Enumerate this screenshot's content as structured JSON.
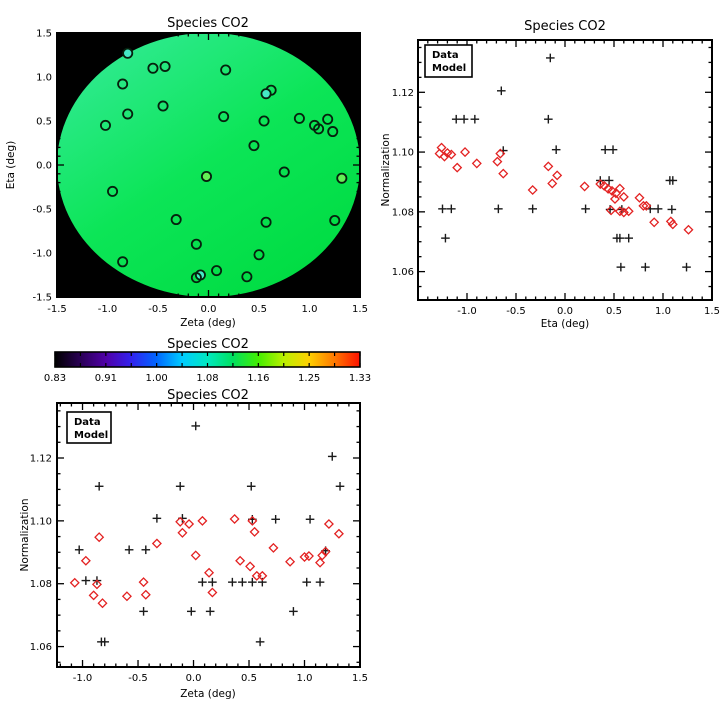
{
  "figure": {
    "background": "#ffffff"
  },
  "palette": {
    "axis": "#000000",
    "data_color": "#1a1a1a",
    "model_color": "#e32222",
    "map_background": "#000000",
    "disk_gradient": [
      "#38eb9e",
      "#0ce557",
      "#00dc42"
    ],
    "source_outline": "#06200d",
    "cyan_fill": "#45e8c5",
    "lightgreen_fill": "#63ef55"
  },
  "chart_data": [
    {
      "id": "map",
      "type": "scatter",
      "title": "Species CO2",
      "xlabel": "Zeta (deg)",
      "ylabel": "Eta (deg)",
      "xlim": [
        -1.5,
        1.5
      ],
      "ylim": [
        -1.5,
        1.5
      ],
      "xtick_vals": [
        -1.5,
        -1.0,
        -0.5,
        0.0,
        0.5,
        1.0,
        1.5
      ],
      "xtick_labels": [
        "-1.5",
        "-1.0",
        "-0.5",
        "0.0",
        "0.5",
        "1.0",
        "1.5"
      ],
      "ytick_vals": [
        -1.5,
        -1.0,
        -0.5,
        0.0,
        0.5,
        1.0,
        1.5
      ],
      "ytick_labels": [
        "-1.5",
        "-1.0",
        "-0.5",
        "0.0",
        "0.5",
        "1.0",
        "1.5"
      ],
      "x_minor_step": 0.1,
      "y_minor_step": 0.1,
      "grid": false,
      "sources": [
        [
          -0.8,
          1.27,
          "cyan"
        ],
        [
          -0.55,
          1.1,
          "none"
        ],
        [
          -0.43,
          1.12,
          "none"
        ],
        [
          0.17,
          1.08,
          "none"
        ],
        [
          -0.85,
          0.92,
          "none"
        ],
        [
          0.62,
          0.85,
          "none"
        ],
        [
          0.57,
          0.81,
          "cyan"
        ],
        [
          -0.45,
          0.67,
          "none"
        ],
        [
          -0.8,
          0.58,
          "none"
        ],
        [
          -1.02,
          0.45,
          "none"
        ],
        [
          0.15,
          0.55,
          "none"
        ],
        [
          0.55,
          0.5,
          "none"
        ],
        [
          0.9,
          0.53,
          "none"
        ],
        [
          1.05,
          0.45,
          "none"
        ],
        [
          1.09,
          0.41,
          "none"
        ],
        [
          1.18,
          0.52,
          "none"
        ],
        [
          1.23,
          0.38,
          "none"
        ],
        [
          0.45,
          0.22,
          "none"
        ],
        [
          0.75,
          -0.08,
          "none"
        ],
        [
          -0.02,
          -0.13,
          "green"
        ],
        [
          1.32,
          -0.15,
          "green"
        ],
        [
          -0.95,
          -0.3,
          "none"
        ],
        [
          -0.32,
          -0.62,
          "none"
        ],
        [
          0.57,
          -0.65,
          "none"
        ],
        [
          1.25,
          -0.63,
          "none"
        ],
        [
          -0.12,
          -0.9,
          "none"
        ],
        [
          0.5,
          -1.02,
          "none"
        ],
        [
          -0.85,
          -1.1,
          "none"
        ],
        [
          0.08,
          -1.2,
          "none"
        ],
        [
          -0.08,
          -1.25,
          "cyan"
        ],
        [
          -0.12,
          -1.28,
          "none"
        ],
        [
          0.38,
          -1.27,
          "none"
        ]
      ]
    },
    {
      "id": "eta_scatter",
      "type": "scatter",
      "title": "Species CO2",
      "xlabel": "Eta (deg)",
      "ylabel": "Normalization",
      "xlim": [
        -1.5,
        1.5
      ],
      "ylim": [
        1.0505,
        1.1375
      ],
      "xtick_vals": [
        -1.0,
        -0.5,
        0.0,
        0.5,
        1.0,
        1.5
      ],
      "xtick_labels": [
        "-1.0",
        "-0.5",
        "0.0",
        "0.5",
        "1.0",
        "1.5"
      ],
      "ytick_vals": [
        1.06,
        1.08,
        1.1,
        1.12
      ],
      "ytick_labels": [
        "1.06",
        "1.08",
        "1.10",
        "1.12"
      ],
      "x_minor_step": 0.1,
      "y_minor_step": 0.005,
      "grid": false,
      "legend": {
        "data_label": "Data",
        "model_label": "Model"
      },
      "data_points": [
        [
          -0.15,
          1.1315
        ],
        [
          -0.65,
          1.1205
        ],
        [
          -1.11,
          1.111
        ],
        [
          -1.03,
          1.111
        ],
        [
          -0.92,
          1.111
        ],
        [
          -0.17,
          1.111
        ],
        [
          -0.63,
          1.1005
        ],
        [
          -0.09,
          1.1008
        ],
        [
          0.41,
          1.1008
        ],
        [
          0.49,
          1.1008
        ],
        [
          0.36,
          1.0905
        ],
        [
          0.45,
          1.0905
        ],
        [
          1.07,
          1.0905
        ],
        [
          1.1,
          1.0905
        ],
        [
          -1.25,
          1.081
        ],
        [
          -1.16,
          1.081
        ],
        [
          -0.68,
          1.081
        ],
        [
          -0.33,
          1.081
        ],
        [
          0.21,
          1.081
        ],
        [
          0.46,
          1.0808
        ],
        [
          0.58,
          1.0808
        ],
        [
          0.87,
          1.081
        ],
        [
          0.95,
          1.081
        ],
        [
          1.09,
          1.0808
        ],
        [
          -1.22,
          1.0712
        ],
        [
          0.53,
          1.0712
        ],
        [
          0.56,
          1.0712
        ],
        [
          0.65,
          1.0712
        ],
        [
          0.57,
          1.0615
        ],
        [
          0.82,
          1.0615
        ],
        [
          1.24,
          1.0615
        ]
      ],
      "model_points": [
        [
          -1.26,
          1.1015
        ],
        [
          -1.28,
          1.0995
        ],
        [
          -1.23,
          1.0985
        ],
        [
          -1.2,
          1.0997
        ],
        [
          -1.16,
          1.0992
        ],
        [
          -1.1,
          1.0948
        ],
        [
          -1.02,
          1.1
        ],
        [
          -0.9,
          1.0962
        ],
        [
          -0.69,
          1.0968
        ],
        [
          -0.66,
          1.0995
        ],
        [
          -0.63,
          1.0928
        ],
        [
          -0.33,
          1.0873
        ],
        [
          -0.17,
          1.0952
        ],
        [
          -0.13,
          1.0895
        ],
        [
          -0.08,
          1.0922
        ],
        [
          0.2,
          1.0885
        ],
        [
          0.36,
          1.0893
        ],
        [
          0.4,
          1.0887
        ],
        [
          0.44,
          1.0877
        ],
        [
          0.48,
          1.087
        ],
        [
          0.52,
          1.0862
        ],
        [
          0.56,
          1.0878
        ],
        [
          0.6,
          1.085
        ],
        [
          0.51,
          1.0843
        ],
        [
          0.47,
          1.0805
        ],
        [
          0.56,
          1.0802
        ],
        [
          0.6,
          1.0798
        ],
        [
          0.65,
          1.0802
        ],
        [
          0.8,
          1.082
        ],
        [
          0.83,
          1.082
        ],
        [
          0.76,
          1.0847
        ],
        [
          0.91,
          1.0765
        ],
        [
          1.08,
          1.0768
        ],
        [
          1.1,
          1.0758
        ],
        [
          1.26,
          1.074
        ]
      ]
    },
    {
      "id": "colorbar",
      "type": "heatmap",
      "title": "Species CO2",
      "tick_labels": [
        "0.83",
        "0.91",
        "1.00",
        "1.08",
        "1.16",
        "1.25",
        "1.33"
      ],
      "n_ticks": 13,
      "gradient": [
        "#000000",
        "#2a0055",
        "#5000a8",
        "#3322ee",
        "#0066ff",
        "#00ccff",
        "#00e8c0",
        "#00e060",
        "#44ee00",
        "#bbf000",
        "#ffd000",
        "#ff7700",
        "#ff1100"
      ]
    },
    {
      "id": "zeta_scatter",
      "type": "scatter",
      "title": "Species CO2",
      "xlabel": "Zeta (deg)",
      "ylabel": "Normalization",
      "xlim": [
        -1.23,
        1.5
      ],
      "ylim": [
        1.0535,
        1.1375
      ],
      "xtick_vals": [
        -1.0,
        -0.5,
        0.0,
        0.5,
        1.0,
        1.5
      ],
      "xtick_labels": [
        "-1.0",
        "-0.5",
        "0.0",
        "0.5",
        "1.0",
        "1.5"
      ],
      "ytick_vals": [
        1.06,
        1.08,
        1.1,
        1.12
      ],
      "ytick_labels": [
        "1.06",
        "1.08",
        "1.10",
        "1.12"
      ],
      "x_minor_step": 0.1,
      "y_minor_step": 0.005,
      "grid": false,
      "legend": {
        "data_label": "Data",
        "model_label": "Model"
      },
      "data_points": [
        [
          0.02,
          1.1302
        ],
        [
          1.25,
          1.1205
        ],
        [
          -0.85,
          1.111
        ],
        [
          -0.12,
          1.111
        ],
        [
          0.52,
          1.111
        ],
        [
          1.32,
          1.111
        ],
        [
          -0.33,
          1.1008
        ],
        [
          -0.1,
          1.1008
        ],
        [
          0.53,
          1.1005
        ],
        [
          0.74,
          1.1005
        ],
        [
          1.05,
          1.1005
        ],
        [
          -1.03,
          1.0908
        ],
        [
          -0.58,
          1.0908
        ],
        [
          -0.43,
          1.0908
        ],
        [
          1.19,
          1.0905
        ],
        [
          -0.97,
          1.081
        ],
        [
          -0.87,
          1.081
        ],
        [
          0.08,
          1.0805
        ],
        [
          0.17,
          1.0805
        ],
        [
          0.35,
          1.0805
        ],
        [
          0.44,
          1.0805
        ],
        [
          0.53,
          1.0805
        ],
        [
          0.62,
          1.0805
        ],
        [
          1.02,
          1.0805
        ],
        [
          1.14,
          1.0805
        ],
        [
          -0.45,
          1.0712
        ],
        [
          -0.02,
          1.0712
        ],
        [
          0.15,
          1.0712
        ],
        [
          0.9,
          1.0712
        ],
        [
          -0.83,
          1.0615
        ],
        [
          -0.8,
          1.0615
        ],
        [
          0.6,
          1.0615
        ]
      ],
      "model_points": [
        [
          -1.07,
          1.0803
        ],
        [
          -0.97,
          1.0873
        ],
        [
          -0.85,
          1.0948
        ],
        [
          -0.87,
          1.0798
        ],
        [
          -0.9,
          1.0763
        ],
        [
          -0.82,
          1.0738
        ],
        [
          -0.6,
          1.076
        ],
        [
          -0.45,
          1.0805
        ],
        [
          -0.43,
          1.0765
        ],
        [
          -0.33,
          1.0928
        ],
        [
          -0.12,
          1.0997
        ],
        [
          -0.1,
          1.0962
        ],
        [
          -0.04,
          1.099
        ],
        [
          0.08,
          1.1
        ],
        [
          0.02,
          1.089
        ],
        [
          0.14,
          1.0835
        ],
        [
          0.17,
          1.0772
        ],
        [
          0.37,
          1.1006
        ],
        [
          0.42,
          1.0873
        ],
        [
          0.53,
          1.1
        ],
        [
          0.55,
          1.0965
        ],
        [
          0.51,
          1.0855
        ],
        [
          0.57,
          1.0825
        ],
        [
          0.62,
          1.0825
        ],
        [
          0.72,
          1.0914
        ],
        [
          0.87,
          1.087
        ],
        [
          1.0,
          1.0885
        ],
        [
          1.04,
          1.0888
        ],
        [
          1.14,
          1.0867
        ],
        [
          1.16,
          1.089
        ],
        [
          1.19,
          1.0902
        ],
        [
          1.22,
          1.099
        ],
        [
          1.31,
          1.0959
        ]
      ]
    }
  ]
}
